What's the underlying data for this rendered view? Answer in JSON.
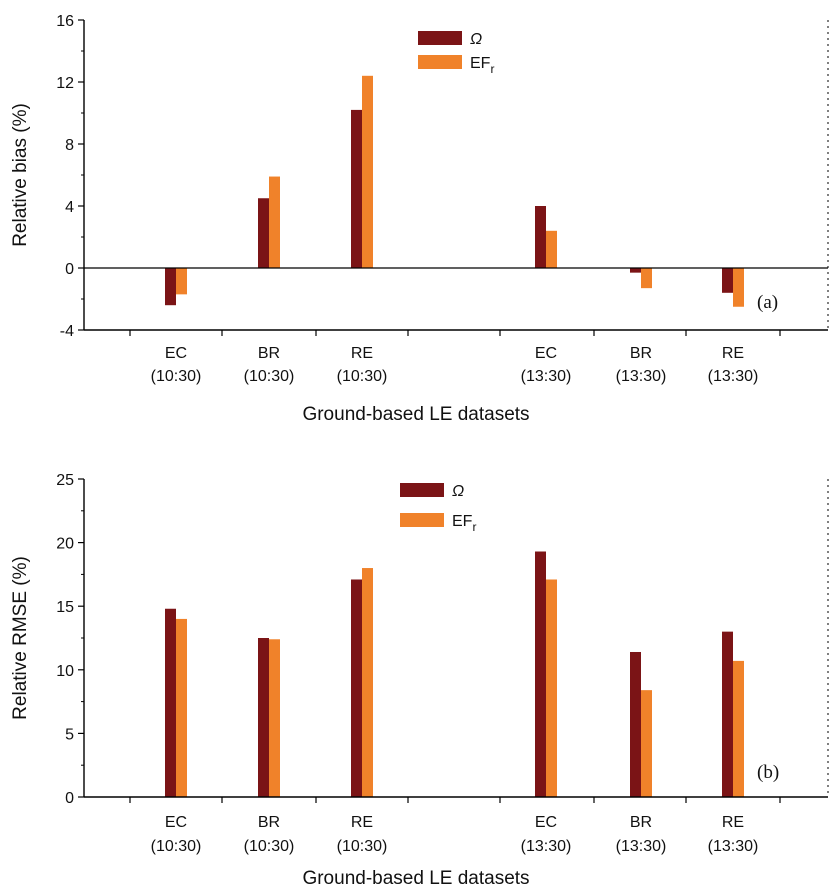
{
  "chart_data": [
    {
      "type": "bar",
      "panel_label": "(a)",
      "xlabel": "Ground-based LE datasets",
      "ylabel": "Relative bias (%)",
      "ylim": [
        -4,
        16
      ],
      "yticks": [
        "-4",
        "0",
        "4",
        "8",
        "12",
        "16"
      ],
      "categories": [
        {
          "name": "EC",
          "time": "(10:30)"
        },
        {
          "name": "BR",
          "time": "(10:30)"
        },
        {
          "name": "RE",
          "time": "(10:30)"
        },
        {
          "name": "EC",
          "time": "(13:30)"
        },
        {
          "name": "BR",
          "time": "(13:30)"
        },
        {
          "name": "RE",
          "time": "(13:30)"
        }
      ],
      "series": [
        {
          "name": "Ω",
          "color": "#7b1416",
          "values": [
            -2.4,
            4.5,
            10.2,
            4.0,
            -0.3,
            -1.6
          ]
        },
        {
          "name": "EF",
          "name_subscript": "r",
          "color": "#f0822a",
          "values": [
            -1.7,
            5.9,
            12.4,
            2.4,
            -1.3,
            -2.5
          ]
        }
      ],
      "legend_position": "top-center",
      "zero_line": true,
      "grid": false
    },
    {
      "type": "bar",
      "panel_label": "(b)",
      "xlabel": "Ground-based LE datasets",
      "ylabel": "Relative RMSE (%)",
      "ylim": [
        0,
        25
      ],
      "yticks": [
        "0",
        "5",
        "10",
        "15",
        "20",
        "25"
      ],
      "categories": [
        {
          "name": "EC",
          "time": "(10:30)"
        },
        {
          "name": "BR",
          "time": "(10:30)"
        },
        {
          "name": "RE",
          "time": "(10:30)"
        },
        {
          "name": "EC",
          "time": "(13:30)"
        },
        {
          "name": "BR",
          "time": "(13:30)"
        },
        {
          "name": "RE",
          "time": "(13:30)"
        }
      ],
      "series": [
        {
          "name": "Ω",
          "color": "#7b1416",
          "values": [
            14.8,
            12.5,
            17.1,
            19.3,
            11.4,
            13.0
          ]
        },
        {
          "name": "EF",
          "name_subscript": "r",
          "color": "#f0822a",
          "values": [
            14.0,
            12.4,
            18.0,
            17.1,
            8.4,
            10.7
          ]
        }
      ],
      "legend_position": "top-center",
      "zero_line": false,
      "grid": false
    }
  ]
}
